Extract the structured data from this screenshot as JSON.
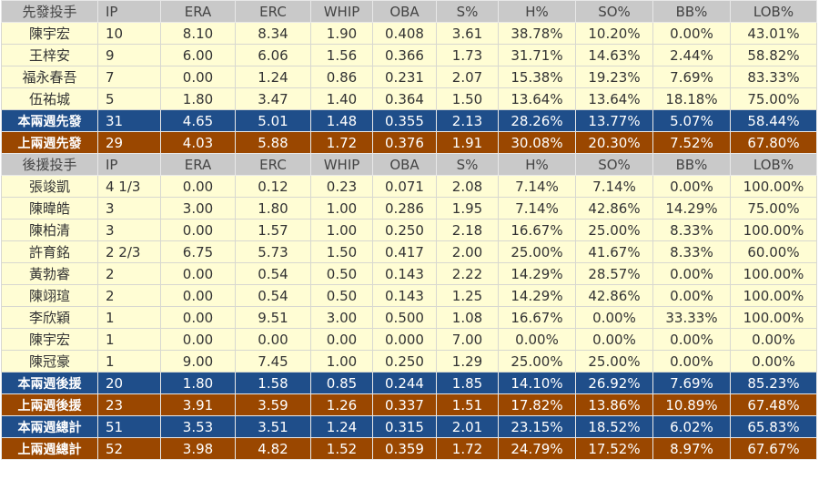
{
  "columns": [
    "IP",
    "ERA",
    "ERC",
    "WHIP",
    "OBA",
    "S%",
    "H%",
    "SO%",
    "BB%",
    "LOB%"
  ],
  "colors": {
    "header": "#c9c9c9",
    "row": "#fffdd4",
    "this_period": "#1f4e8a",
    "last_period": "#9a4700"
  },
  "sections": [
    {
      "title": "先發投手",
      "rows": [
        [
          "陳宇宏",
          "10",
          "8.10",
          "8.34",
          "1.90",
          "0.408",
          "3.61",
          "38.78%",
          "10.20%",
          "0.00%",
          "43.01%"
        ],
        [
          "王梓安",
          "9",
          "6.00",
          "6.06",
          "1.56",
          "0.366",
          "1.73",
          "31.71%",
          "14.63%",
          "2.44%",
          "58.82%"
        ],
        [
          "福永春吾",
          "7",
          "0.00",
          "1.24",
          "0.86",
          "0.231",
          "2.07",
          "15.38%",
          "19.23%",
          "7.69%",
          "83.33%"
        ],
        [
          "伍祐城",
          "5",
          "1.80",
          "3.47",
          "1.40",
          "0.364",
          "1.50",
          "13.64%",
          "13.64%",
          "18.18%",
          "75.00%"
        ]
      ],
      "totals": [
        {
          "type": "blue",
          "cells": [
            "本兩週先發",
            "31",
            "4.65",
            "5.01",
            "1.48",
            "0.355",
            "2.13",
            "28.26%",
            "13.77%",
            "5.07%",
            "58.44%"
          ]
        },
        {
          "type": "brown",
          "cells": [
            "上兩週先發",
            "29",
            "4.03",
            "5.88",
            "1.72",
            "0.376",
            "1.91",
            "30.08%",
            "20.30%",
            "7.52%",
            "67.80%"
          ]
        }
      ]
    },
    {
      "title": "後援投手",
      "rows": [
        [
          "張竣凱",
          "4 1/3",
          "0.00",
          "0.12",
          "0.23",
          "0.071",
          "2.08",
          "7.14%",
          "7.14%",
          "0.00%",
          "100.00%"
        ],
        [
          "陳暐皓",
          "3",
          "3.00",
          "1.80",
          "1.00",
          "0.286",
          "1.95",
          "7.14%",
          "42.86%",
          "14.29%",
          "75.00%"
        ],
        [
          "陳柏清",
          "3",
          "0.00",
          "1.57",
          "1.00",
          "0.250",
          "2.18",
          "16.67%",
          "25.00%",
          "8.33%",
          "100.00%"
        ],
        [
          "許育銘",
          "2 2/3",
          "6.75",
          "5.73",
          "1.50",
          "0.417",
          "2.00",
          "25.00%",
          "41.67%",
          "8.33%",
          "60.00%"
        ],
        [
          "黃勃睿",
          "2",
          "0.00",
          "0.54",
          "0.50",
          "0.143",
          "2.22",
          "14.29%",
          "28.57%",
          "0.00%",
          "100.00%"
        ],
        [
          "陳翊瑄",
          "2",
          "0.00",
          "0.54",
          "0.50",
          "0.143",
          "1.25",
          "14.29%",
          "42.86%",
          "0.00%",
          "100.00%"
        ],
        [
          "李欣穎",
          "1",
          "0.00",
          "9.51",
          "3.00",
          "0.500",
          "1.08",
          "16.67%",
          "0.00%",
          "33.33%",
          "100.00%"
        ],
        [
          "陳宇宏",
          "1",
          "0.00",
          "0.00",
          "0.00",
          "0.000",
          "7.00",
          "0.00%",
          "0.00%",
          "0.00%",
          "0.00%"
        ],
        [
          "陳冠豪",
          "1",
          "9.00",
          "7.45",
          "1.00",
          "0.250",
          "1.29",
          "25.00%",
          "25.00%",
          "0.00%",
          "0.00%"
        ]
      ],
      "totals": [
        {
          "type": "blue",
          "cells": [
            "本兩週後援",
            "20",
            "1.80",
            "1.58",
            "0.85",
            "0.244",
            "1.85",
            "14.10%",
            "26.92%",
            "7.69%",
            "85.23%"
          ]
        },
        {
          "type": "brown",
          "cells": [
            "上兩週後援",
            "23",
            "3.91",
            "3.59",
            "1.26",
            "0.337",
            "1.51",
            "17.82%",
            "13.86%",
            "10.89%",
            "67.48%"
          ]
        },
        {
          "type": "blue",
          "cells": [
            "本兩週總計",
            "51",
            "3.53",
            "3.51",
            "1.24",
            "0.315",
            "2.01",
            "23.15%",
            "18.52%",
            "6.02%",
            "65.83%"
          ]
        },
        {
          "type": "brown",
          "cells": [
            "上兩週總計",
            "52",
            "3.98",
            "4.82",
            "1.52",
            "0.359",
            "1.72",
            "24.79%",
            "17.52%",
            "8.97%",
            "67.67%"
          ]
        }
      ]
    }
  ]
}
